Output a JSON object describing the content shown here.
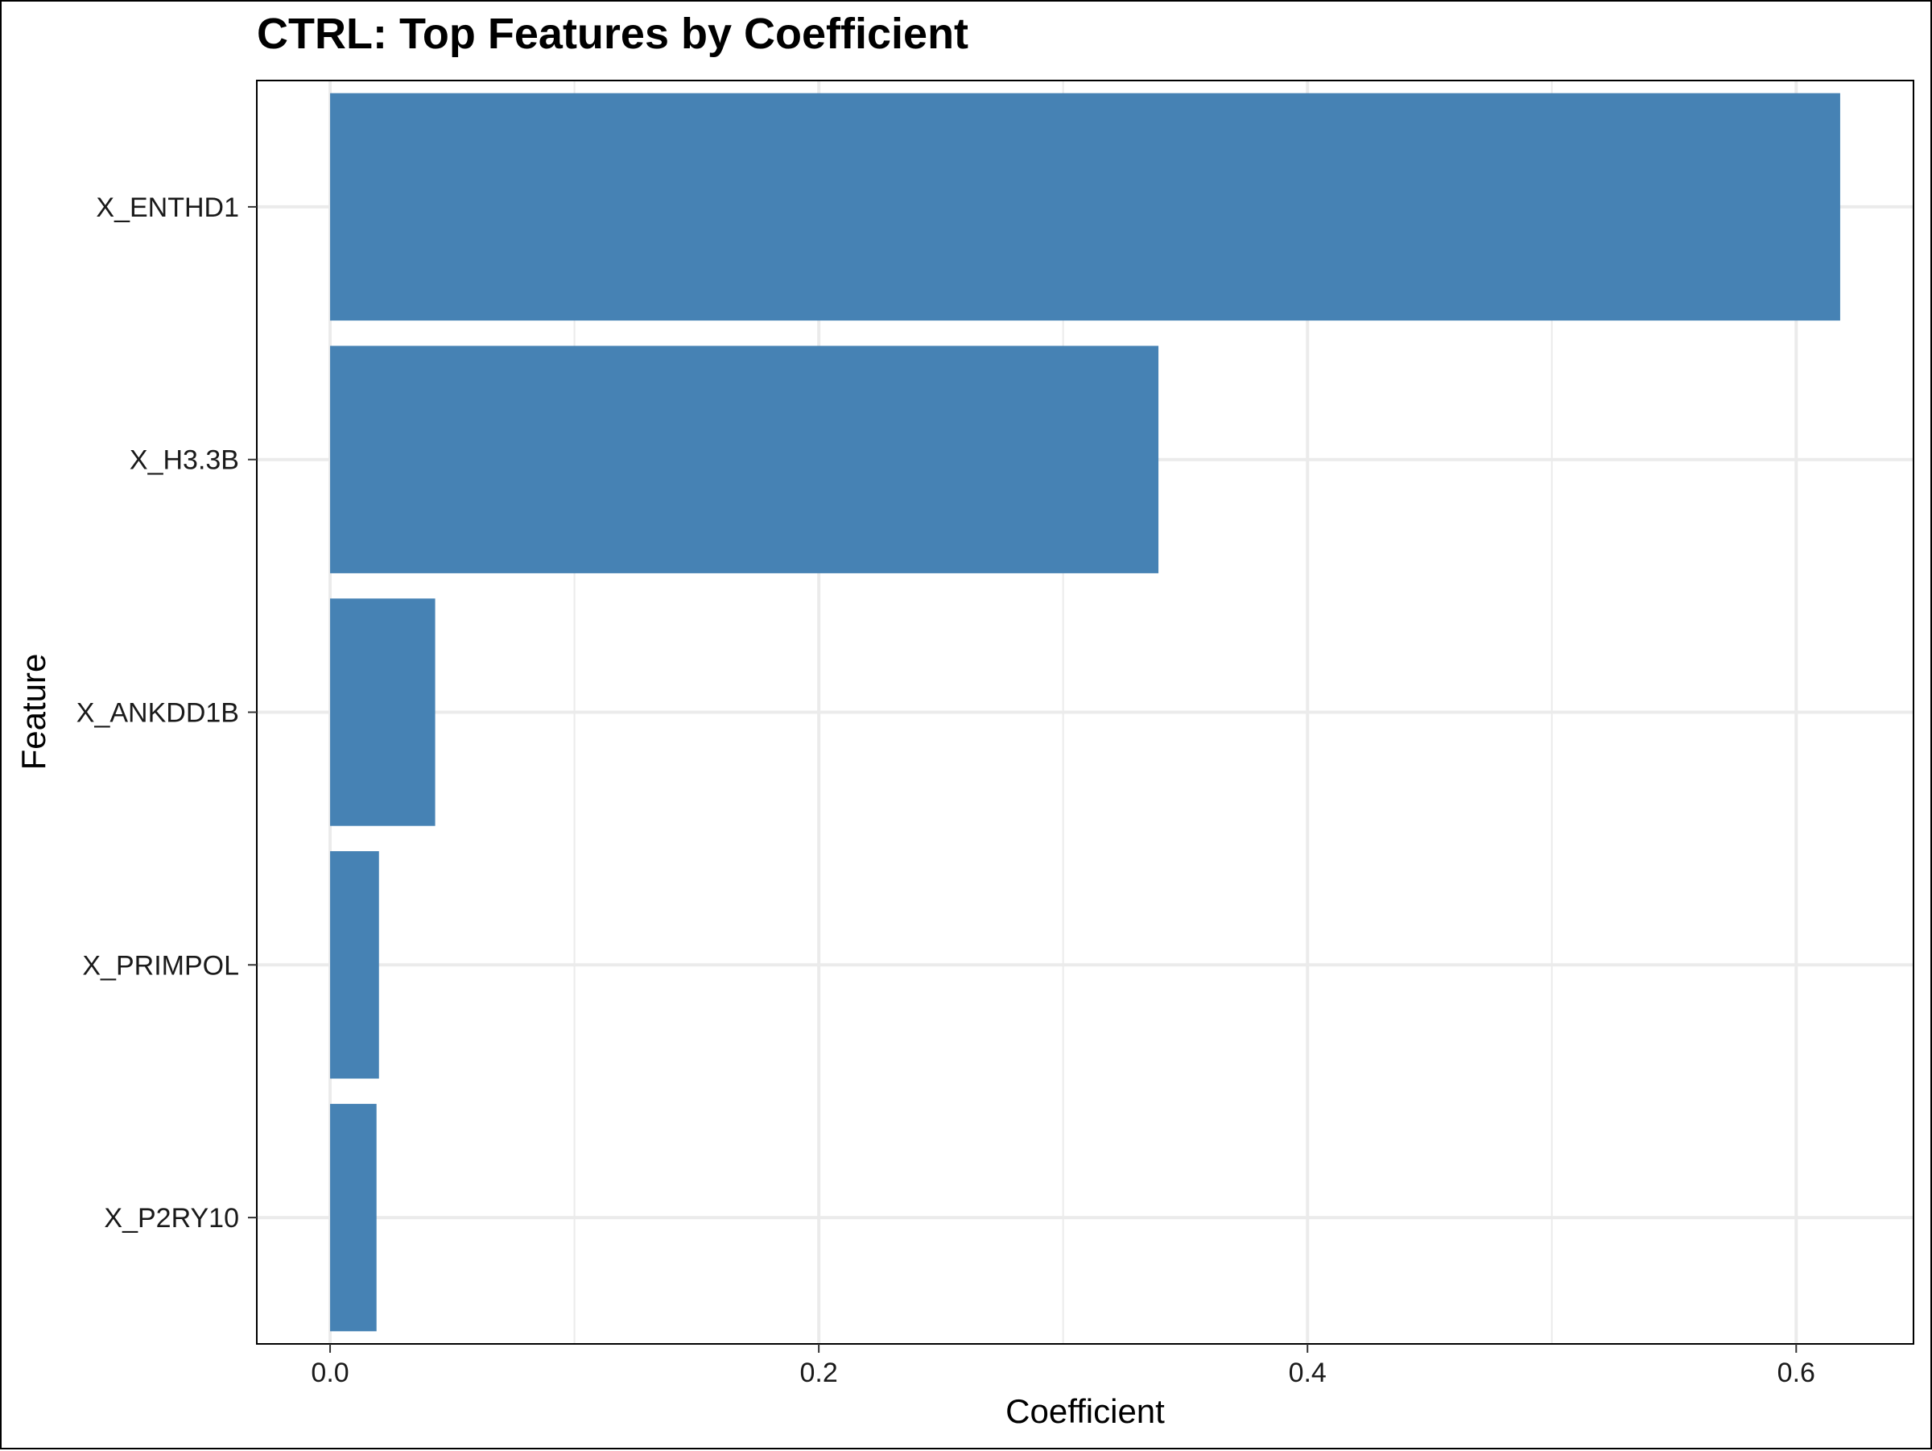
{
  "chart_data": {
    "type": "bar",
    "orientation": "horizontal",
    "title": "CTRL: Top Features by Coefficient",
    "xlabel": "Coefficient",
    "ylabel": "Feature",
    "categories": [
      "X_ENTHD1",
      "X_H3.3B",
      "X_ANKDD1B",
      "X_PRIMPOL",
      "X_P2RY10"
    ],
    "values": [
      0.618,
      0.339,
      0.043,
      0.02,
      0.019
    ],
    "xlim": [
      -0.03,
      0.648
    ],
    "x_ticks": [
      0.0,
      0.2,
      0.4,
      0.6
    ],
    "x_tick_labels": [
      "0.0",
      "0.2",
      "0.4",
      "0.6"
    ],
    "grid": true,
    "bar_color": "#4682B4",
    "grid_color": "#EBEBEB",
    "panel_border_color": "#000000"
  }
}
